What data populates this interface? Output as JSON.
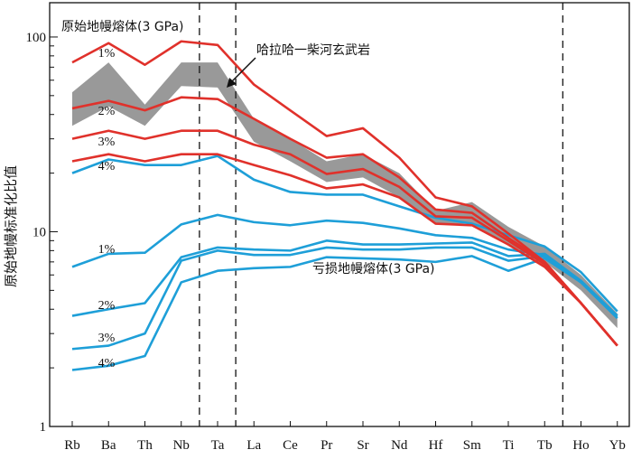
{
  "chart_data": {
    "type": "line",
    "y_scale": "log",
    "ylim": [
      1,
      150
    ],
    "ylabel": "原始地幔标准化比值",
    "y_ticks": [
      "1",
      "10",
      "100"
    ],
    "categories": [
      "Rb",
      "Ba",
      "Th",
      "Nb",
      "Ta",
      "La",
      "Ce",
      "Pr",
      "Sr",
      "Nd",
      "Hf",
      "Sm",
      "Ti",
      "Tb",
      "Ho",
      "Yb"
    ],
    "dashed_after": [
      "Nb",
      "Ta",
      "Tb"
    ],
    "colors": {
      "red": "#e0312b",
      "blue": "#1e9fd8",
      "band": "#999999",
      "axis": "#111111"
    },
    "band": {
      "name": "哈拉哈一柴河玄武岩",
      "upper": [
        52,
        74,
        45,
        74,
        74,
        38,
        30,
        23,
        25,
        20,
        12.8,
        14.2,
        10.6,
        8.4,
        6.0,
        3.8
      ],
      "lower": [
        35,
        44,
        35,
        56,
        55,
        29,
        23,
        18,
        19,
        15,
        11.0,
        11.0,
        8.6,
        7.0,
        5.0,
        3.2
      ]
    },
    "series": [
      {
        "group": "primitive",
        "name": "1%",
        "color": "red",
        "values": [
          74,
          93,
          72,
          95,
          91,
          57,
          42,
          31,
          34,
          24,
          15.0,
          13.5,
          9.8,
          7.0,
          4.3,
          2.6
        ]
      },
      {
        "group": "primitive",
        "name": "2%",
        "color": "red",
        "values": [
          43,
          47,
          42,
          49,
          48,
          38,
          30,
          24,
          25,
          19,
          13.0,
          12.5,
          9.3,
          7.0,
          4.3,
          2.6
        ]
      },
      {
        "group": "primitive",
        "name": "3%",
        "color": "red",
        "values": [
          30,
          33,
          30,
          33,
          33,
          28,
          25,
          19.8,
          21,
          17,
          12.0,
          11.8,
          9.0,
          6.8,
          4.3,
          2.6
        ]
      },
      {
        "group": "primitive",
        "name": "4%",
        "color": "red",
        "values": [
          23,
          25,
          23,
          25,
          25,
          22,
          19.5,
          16.7,
          17.5,
          15,
          11.0,
          10.8,
          8.6,
          6.6,
          4.3,
          2.6
        ]
      },
      {
        "group": "depleted",
        "name": "",
        "color": "blue",
        "values": [
          20,
          23.5,
          22,
          22,
          24.5,
          18.5,
          16,
          15.5,
          15.5,
          13.5,
          11.8,
          11.0,
          9.6,
          8.4,
          6.2,
          3.9
        ]
      },
      {
        "group": "depleted",
        "name": "1%",
        "color": "blue",
        "values": [
          6.6,
          7.7,
          7.8,
          10.9,
          12.2,
          11.2,
          10.8,
          11.4,
          11.1,
          10.4,
          9.6,
          9.3,
          8.1,
          7.6,
          5.5,
          3.7
        ]
      },
      {
        "group": "depleted",
        "name": "2%",
        "color": "blue",
        "values": [
          3.7,
          4.0,
          4.3,
          7.4,
          8.3,
          8.1,
          8.0,
          9.0,
          8.6,
          8.6,
          8.7,
          8.8,
          7.5,
          7.7,
          5.6,
          3.7
        ]
      },
      {
        "group": "depleted",
        "name": "3%",
        "color": "blue",
        "values": [
          2.5,
          2.6,
          3.0,
          7.1,
          8.0,
          7.6,
          7.6,
          8.3,
          8.1,
          8.1,
          8.3,
          8.3,
          7.1,
          7.5,
          5.5,
          3.6
        ]
      },
      {
        "group": "depleted",
        "name": "4%",
        "color": "blue",
        "values": [
          1.95,
          2.05,
          2.3,
          5.5,
          6.3,
          6.5,
          6.6,
          7.4,
          7.3,
          7.2,
          7.0,
          7.5,
          6.3,
          7.3,
          5.5,
          3.6
        ]
      }
    ],
    "annotations": {
      "primitive_title": "原始地幔熔体(3 GPa)",
      "depleted_title": "亏损地幔熔体(3 GPa)",
      "band_label": "哈拉哈一柴河玄武岩"
    }
  }
}
